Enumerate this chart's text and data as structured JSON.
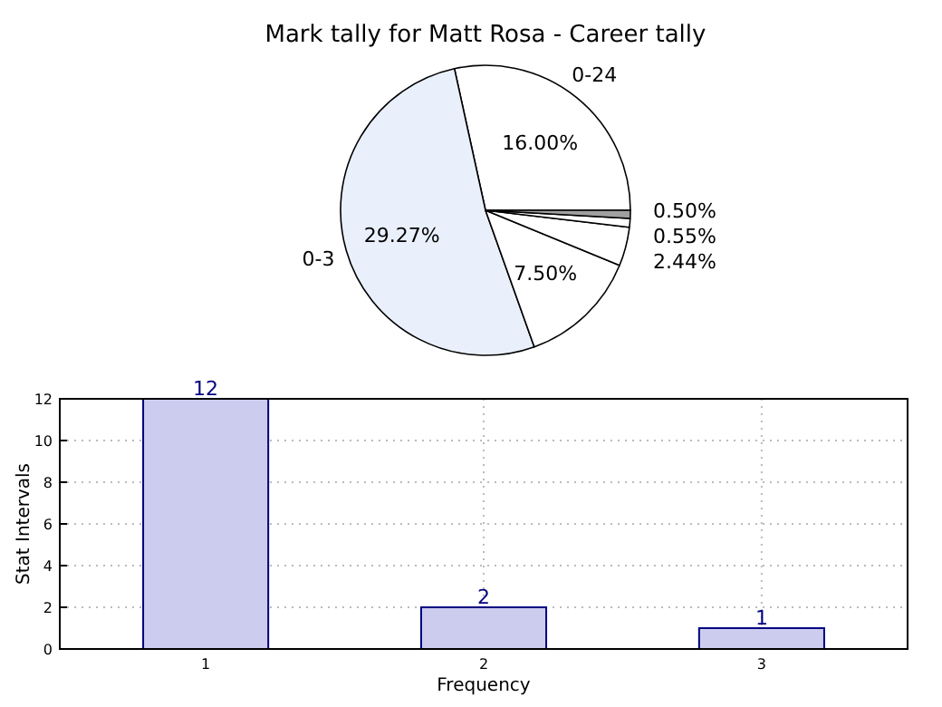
{
  "chart_data": [
    {
      "type": "pie",
      "title": "Mark tally for Matt Rosa - Career tally",
      "categories": [
        "0-24",
        "0-3",
        null,
        null,
        null,
        null
      ],
      "values": [
        16.0,
        29.27,
        7.5,
        2.44,
        0.55,
        0.5
      ],
      "value_labels": [
        "16.00%",
        "29.27%",
        "7.50%",
        "2.44%",
        "0.55%",
        "0.50%"
      ],
      "colors": [
        "#ffffff",
        "#eaf0fb",
        "#ffffff",
        "#ffffff",
        "#ffffff",
        "#a0a0a0"
      ]
    },
    {
      "type": "bar",
      "categories": [
        "1",
        "2",
        "3"
      ],
      "values": [
        12,
        2,
        1
      ],
      "color": "#ccccee",
      "xlabel": "Frequency",
      "ylabel": "Stat Intervals",
      "ylim": [
        0,
        12
      ],
      "yticks": [
        0,
        2,
        4,
        6,
        8,
        10,
        12
      ],
      "grid": true,
      "data_labels": true
    }
  ]
}
